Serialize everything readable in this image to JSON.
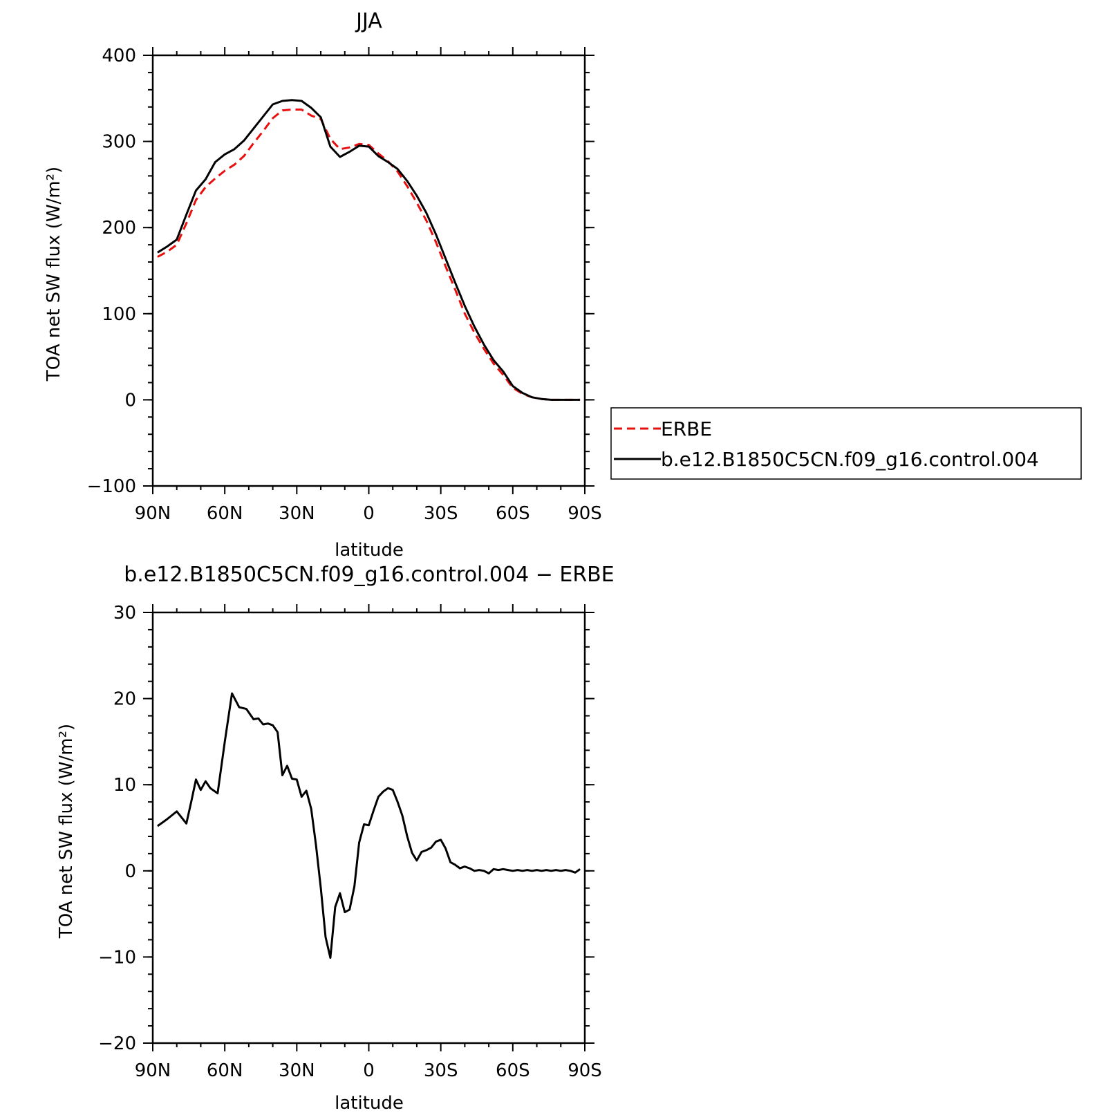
{
  "chart_data": [
    {
      "type": "line",
      "title": "JJA",
      "xlabel": "latitude",
      "ylabel": "TOA net SW flux (W/m²)",
      "ylim": [
        -100,
        400
      ],
      "yticks": [
        -100,
        0,
        100,
        200,
        300,
        400
      ],
      "xlim": [
        90,
        -90
      ],
      "xtick_values": [
        90,
        60,
        30,
        0,
        -30,
        -60,
        -90
      ],
      "xtick_labels": [
        "90N",
        "60N",
        "30N",
        "0",
        "30S",
        "60S",
        "90S"
      ],
      "legend": "right",
      "x": [
        88,
        84,
        80,
        76,
        72,
        68,
        64,
        60,
        56,
        52,
        48,
        44,
        40,
        36,
        32,
        28,
        24,
        20,
        16,
        12,
        8,
        4,
        0,
        -4,
        -8,
        -12,
        -16,
        -20,
        -24,
        -28,
        -32,
        -36,
        -40,
        -44,
        -48,
        -52,
        -56,
        -60,
        -64,
        -68,
        -72,
        -76,
        -80,
        -84,
        -88
      ],
      "series": [
        {
          "name": "ERBE",
          "color": "#e8100f",
          "dash": "dashed",
          "values": [
            166,
            172,
            180,
            205,
            232,
            247,
            257,
            266,
            273,
            283,
            298,
            312,
            327,
            336,
            337,
            337,
            330,
            326,
            303,
            291,
            293,
            297,
            296,
            286,
            277,
            265,
            248,
            229,
            208,
            183,
            155,
            128,
            100,
            78,
            59,
            42,
            29,
            14,
            7,
            3,
            1,
            0,
            0,
            0,
            0
          ]
        },
        {
          "name": "b.e12.B1850C5CN.f09_g16.control.004",
          "color": "#000000",
          "dash": "solid",
          "values": [
            171,
            178,
            186,
            215,
            243,
            256,
            276,
            285,
            291,
            301,
            315,
            329,
            343,
            347,
            348,
            347,
            339,
            328,
            294,
            282,
            288,
            295,
            294,
            283,
            276,
            268,
            254,
            237,
            217,
            192,
            164,
            136,
            109,
            85,
            64,
            46,
            33,
            16,
            8,
            3,
            1,
            0,
            0,
            0,
            0
          ]
        }
      ]
    },
    {
      "type": "line",
      "title": "b.e12.B1850C5CN.f09_g16.control.004 − ERBE",
      "xlabel": "latitude",
      "ylabel": "TOA net SW flux (W/m²)",
      "ylim": [
        -20,
        30
      ],
      "yticks": [
        -20,
        -10,
        0,
        10,
        20,
        30
      ],
      "xlim": [
        90,
        -90
      ],
      "xtick_values": [
        90,
        60,
        30,
        0,
        -30,
        -60,
        -90
      ],
      "xtick_labels": [
        "90N",
        "60N",
        "30N",
        "0",
        "30S",
        "60S",
        "90S"
      ],
      "x": [
        88,
        84,
        80,
        76,
        74,
        72,
        70,
        68,
        66,
        63,
        60,
        57,
        54,
        51,
        48,
        46,
        44,
        42,
        40,
        38,
        36,
        34,
        32,
        30,
        28,
        26,
        24,
        22,
        20,
        18,
        16,
        14,
        12,
        10,
        8,
        6,
        4,
        2,
        0,
        -2,
        -4,
        -6,
        -8,
        -10,
        -12,
        -14,
        -16,
        -18,
        -20,
        -22,
        -24,
        -26,
        -28,
        -30,
        -32,
        -34,
        -36,
        -38,
        -40,
        -42,
        -44,
        -46,
        -48,
        -50,
        -52,
        -54,
        -56,
        -58,
        -60,
        -62,
        -64,
        -66,
        -68,
        -70,
        -72,
        -74,
        -76,
        -78,
        -80,
        -82,
        -84,
        -86,
        -88
      ],
      "series": [
        {
          "name": "",
          "color": "#000000",
          "dash": "solid",
          "values": [
            5.2,
            6,
            6.9,
            5.5,
            8,
            10.6,
            9.4,
            10.4,
            9.6,
            9,
            15,
            20.6,
            19,
            18.8,
            17.6,
            17.7,
            17,
            17.1,
            16.9,
            16.1,
            11.1,
            12.2,
            10.7,
            10.6,
            8.6,
            9.3,
            7.2,
            3,
            -2,
            -7.7,
            -10.1,
            -4.2,
            -2.6,
            -4.8,
            -4.5,
            -1.8,
            3.3,
            5.4,
            5.3,
            7,
            8.6,
            9.2,
            9.6,
            9.4,
            8,
            6.4,
            4,
            2.1,
            1.2,
            2.2,
            2.4,
            2.7,
            3.4,
            3.6,
            2.6,
            1,
            0.7,
            0.3,
            0.5,
            0.3,
            0,
            0.1,
            0.0,
            -0.3,
            0.2,
            0.1,
            0.2,
            0.1,
            0,
            0.1,
            0,
            0.1,
            0,
            0.1,
            0,
            0.1,
            0,
            0.1,
            0,
            0.1,
            0,
            -0.2,
            0.2
          ]
        }
      ]
    }
  ]
}
